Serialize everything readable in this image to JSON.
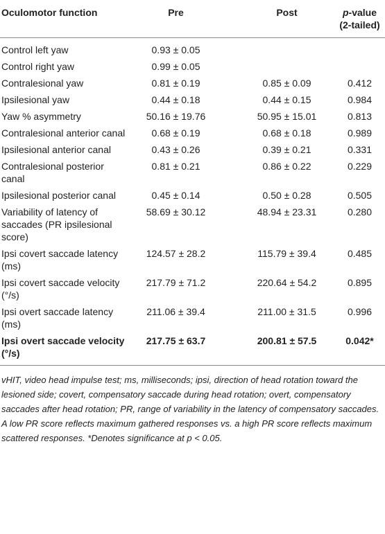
{
  "header": {
    "columns": [
      "Oculomotor function",
      "Pre",
      "Post"
    ],
    "p_value": {
      "italic": "p",
      "rest": "-value",
      "line2": "(2-tailed)"
    }
  },
  "table": {
    "rows": [
      [
        "Control left yaw",
        "0.93 ± 0.05",
        null,
        null
      ],
      [
        "Control right yaw",
        "0.99 ± 0.05",
        null,
        null
      ],
      [
        "Contralesional yaw",
        "0.81 ± 0.19",
        "0.85 ± 0.09",
        "0.412"
      ],
      [
        "Ipsilesional yaw",
        "0.44 ± 0.18",
        "0.44 ± 0.15",
        "0.984"
      ],
      [
        "Yaw % asymmetry",
        "50.16 ± 19.76",
        "50.95 ± 15.01",
        "0.813"
      ],
      [
        "Contralesional anterior canal",
        "0.68 ± 0.19",
        "0.68 ± 0.18",
        "0.989"
      ],
      [
        "Ipsilesional anterior canal",
        "0.43 ± 0.26",
        "0.39 ± 0.21",
        "0.331"
      ],
      [
        "Contralesional posterior canal",
        "0.81 ± 0.21",
        "0.86 ± 0.22",
        "0.229"
      ],
      [
        "Ipsilesional posterior canal",
        "0.45 ± 0.14",
        "0.50 ± 0.28",
        "0.505"
      ],
      [
        "Variability of latency of saccades (PR ipsilesional score)",
        "58.69 ± 30.12",
        "48.94 ± 23.31",
        "0.280"
      ],
      [
        "Ipsi covert saccade latency (ms)",
        "124.57 ± 28.2",
        "115.79 ± 39.4",
        "0.485"
      ],
      [
        "Ipsi covert saccade velocity (°/s)",
        "217.79 ± 71.2",
        "220.64 ± 54.2",
        "0.895"
      ],
      [
        "Ipsi overt saccade latency (ms)",
        "211.06 ± 39.4",
        "211.00 ± 31.5",
        "0.996"
      ],
      [
        "Ipsi overt saccade velocity (°/s)",
        "217.75 ± 63.7",
        "200.81 ± 57.5",
        "0.042*"
      ]
    ],
    "bold_rows": [
      13
    ]
  },
  "footnote": "vHIT, video head impulse test; ms, milliseconds; ipsi, direction of head rotation toward the lesioned side; covert, compensatory saccade during head rotation; overt, compensatory saccades after head rotation; PR, range of variability in the latency of compensatory saccades. A low PR score reflects maximum gathered responses vs. a high PR score reflects maximum scattered responses. *Denotes significance at p < 0.05."
}
